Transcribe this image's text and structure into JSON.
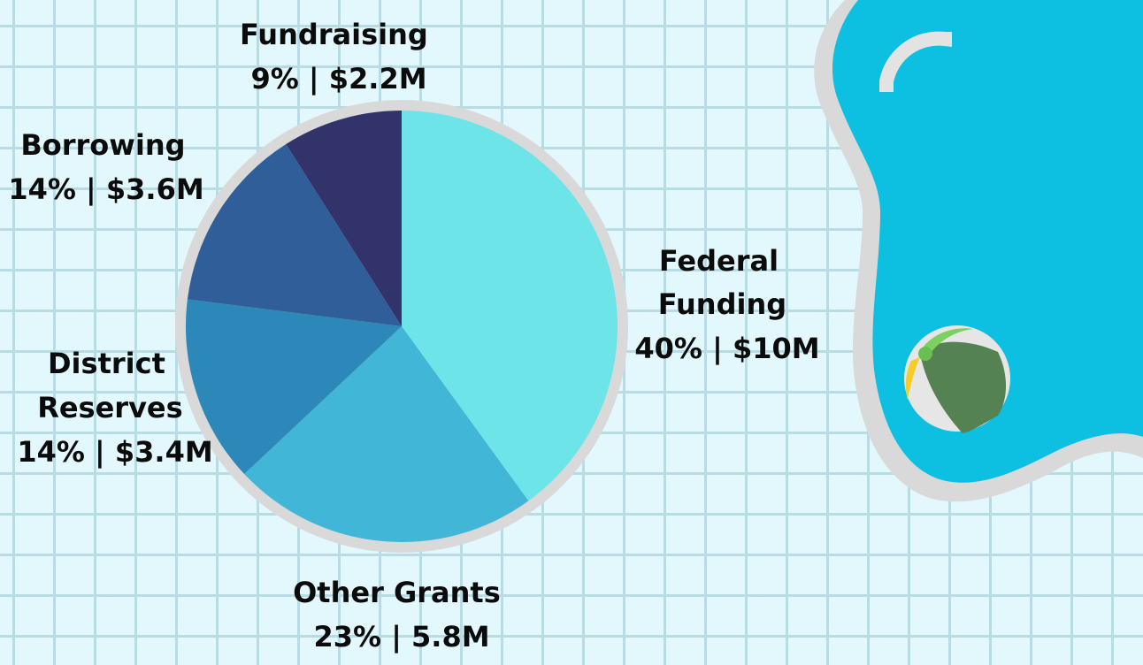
{
  "chart_data": {
    "type": "pie",
    "title": "",
    "start_angle_deg": 0,
    "direction": "clockwise",
    "slices": [
      {
        "label": "Federal Funding",
        "percent": 40,
        "amount": "$10M",
        "value": 10.0,
        "color": "#6ce4e8",
        "text": [
          "Federal",
          "Funding",
          "40% | $10M"
        ]
      },
      {
        "label": "Other Grants",
        "percent": 23,
        "amount": "5.8M",
        "value": 5.8,
        "color": "#42b6d6",
        "text": [
          "Other Grants",
          "23% | 5.8M"
        ]
      },
      {
        "label": "District Reserves",
        "percent": 14,
        "amount": "$3.4M",
        "value": 3.4,
        "color": "#2b88b9",
        "text": [
          "District",
          "Reserves",
          "14% | $3.4M"
        ]
      },
      {
        "label": "Borrowing",
        "percent": 14,
        "amount": "$3.6M",
        "value": 3.6,
        "color": "#2f5e98",
        "text": [
          "Borrowing",
          "14% | $3.6M"
        ]
      },
      {
        "label": "Fundraising",
        "percent": 9,
        "amount": "$2.2M",
        "value": 2.2,
        "color": "#31336a",
        "text": [
          "Fundraising",
          "9% | $2.2M"
        ]
      }
    ]
  },
  "decor": {
    "pie_rim_color": "#d9d9d9",
    "pool_color": "#0dbfe0",
    "pool_edge_color": "#d9d9d9",
    "ball_icon": "beach-ball-icon"
  }
}
